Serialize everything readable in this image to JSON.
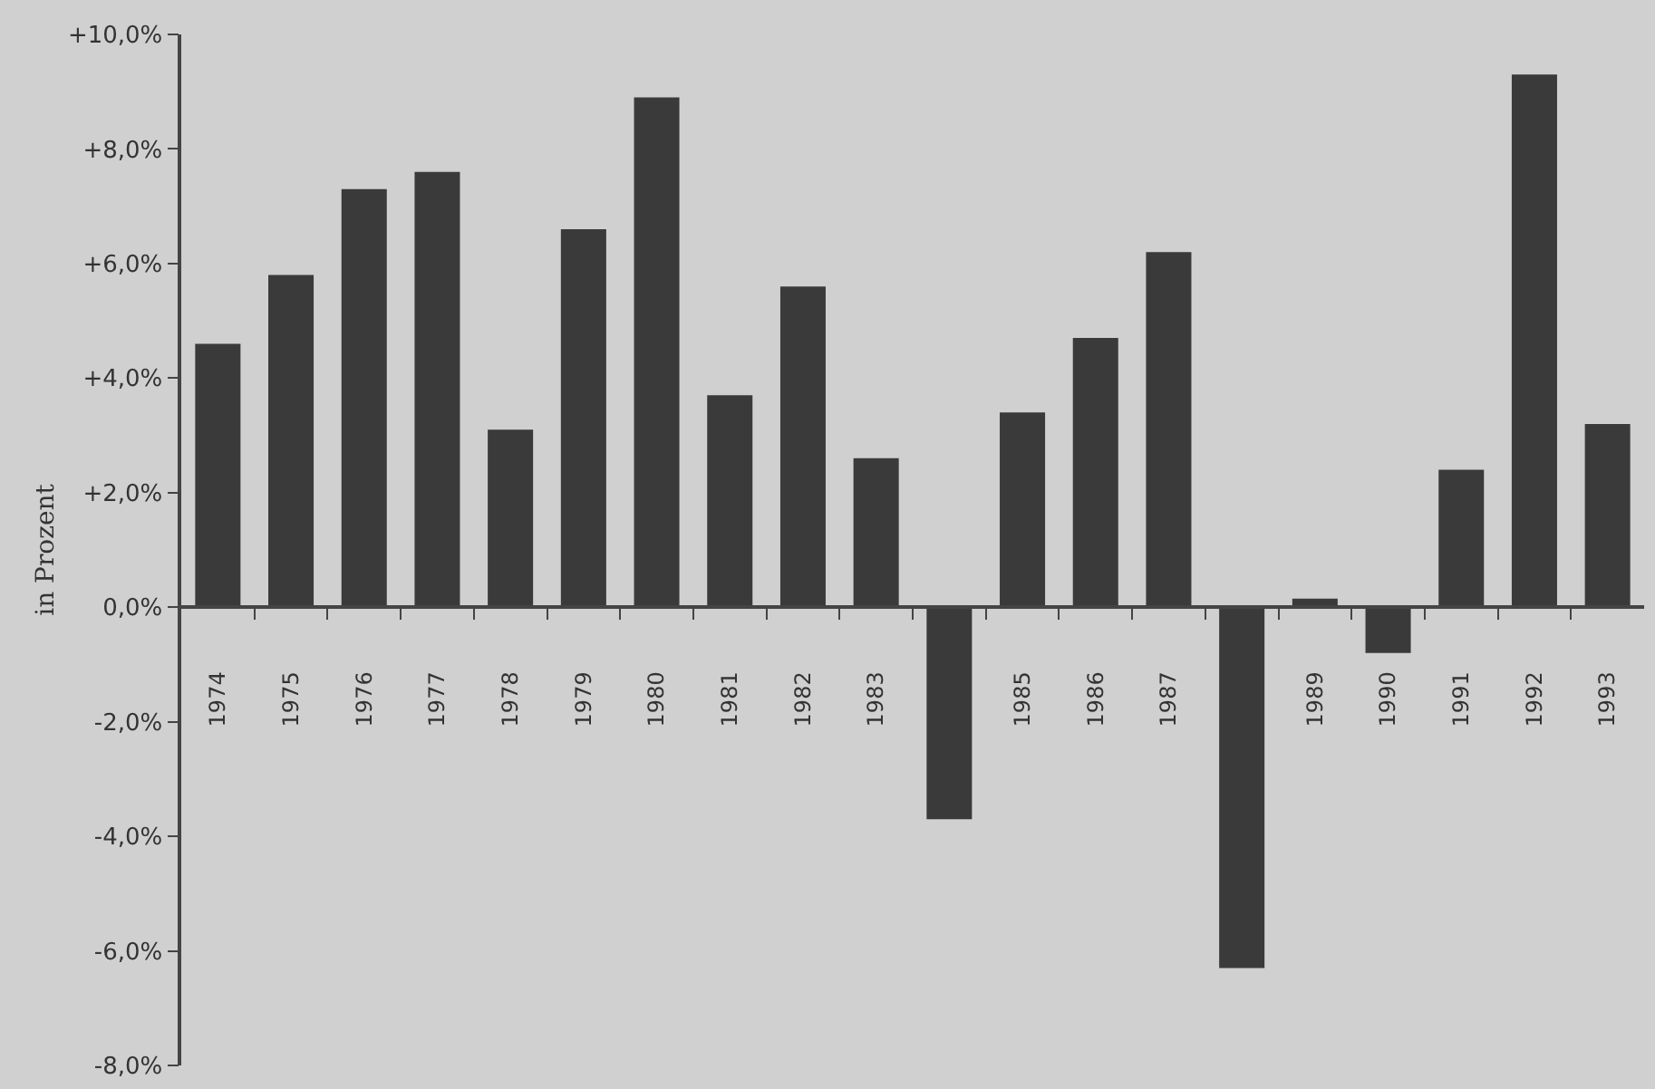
{
  "chart_data": {
    "type": "bar",
    "ylabel": "in Prozent",
    "categories": [
      "1974",
      "1975",
      "1976",
      "1977",
      "1978",
      "1979",
      "1980",
      "1981",
      "1982",
      "1983",
      null,
      "1985",
      "1986",
      "1987",
      null,
      "1989",
      "1990",
      "1991",
      "1992",
      "1993"
    ],
    "values": [
      4.6,
      5.8,
      7.3,
      7.6,
      3.1,
      6.6,
      8.9,
      3.7,
      5.6,
      2.6,
      -3.7,
      3.4,
      4.7,
      6.2,
      -6.3,
      0.15,
      -0.8,
      2.4,
      9.3,
      3.2
    ],
    "color": "#3a3a3a",
    "ylim": [
      -8,
      10
    ],
    "yticks": [
      {
        "value": -8,
        "label": "-8,0%"
      },
      {
        "value": -6,
        "label": "-6,0%"
      },
      {
        "value": -4,
        "label": "-4,0%"
      },
      {
        "value": -2,
        "label": "-2,0%"
      },
      {
        "value": 0,
        "label": "0,0%"
      },
      {
        "value": 2,
        "label": "+2,0%"
      },
      {
        "value": 4,
        "label": "+4,0%"
      },
      {
        "value": 6,
        "label": "+6,0%"
      },
      {
        "value": 8,
        "label": "+8,0%"
      },
      {
        "value": 10,
        "label": "+10,0%"
      }
    ],
    "legend": false
  }
}
